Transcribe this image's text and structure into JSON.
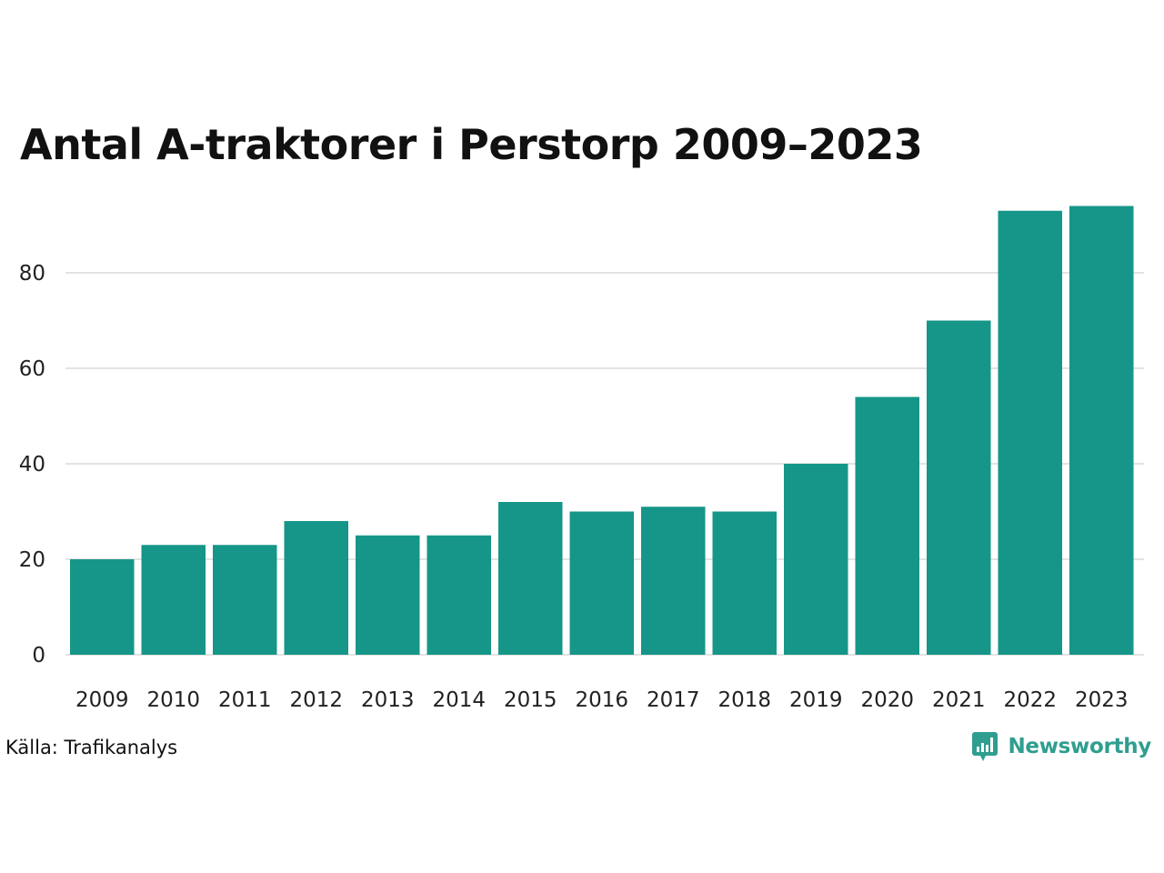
{
  "title": "Antal A-traktorer i Perstorp 2009–2023",
  "source": "Källa: Trafikanalys",
  "brand": {
    "name": "Newsworthy",
    "logo_icon": "bar-chart-speech-bubble-icon",
    "color": "#2f9e8f"
  },
  "colors": {
    "bar": "#159688",
    "grid": "#e3e3e3",
    "axis_text": "#222222"
  },
  "chart_data": {
    "type": "bar",
    "title": "Antal A-traktorer i Perstorp 2009–2023",
    "xlabel": "",
    "ylabel": "",
    "categories": [
      "2009",
      "2010",
      "2011",
      "2012",
      "2013",
      "2014",
      "2015",
      "2016",
      "2017",
      "2018",
      "2019",
      "2020",
      "2021",
      "2022",
      "2023"
    ],
    "values": [
      20,
      23,
      23,
      28,
      25,
      25,
      32,
      30,
      31,
      30,
      40,
      54,
      70,
      93,
      94
    ],
    "yticks": [
      0,
      20,
      40,
      60,
      80
    ],
    "ylim": [
      0,
      96
    ],
    "grid": true,
    "legend": "none"
  }
}
